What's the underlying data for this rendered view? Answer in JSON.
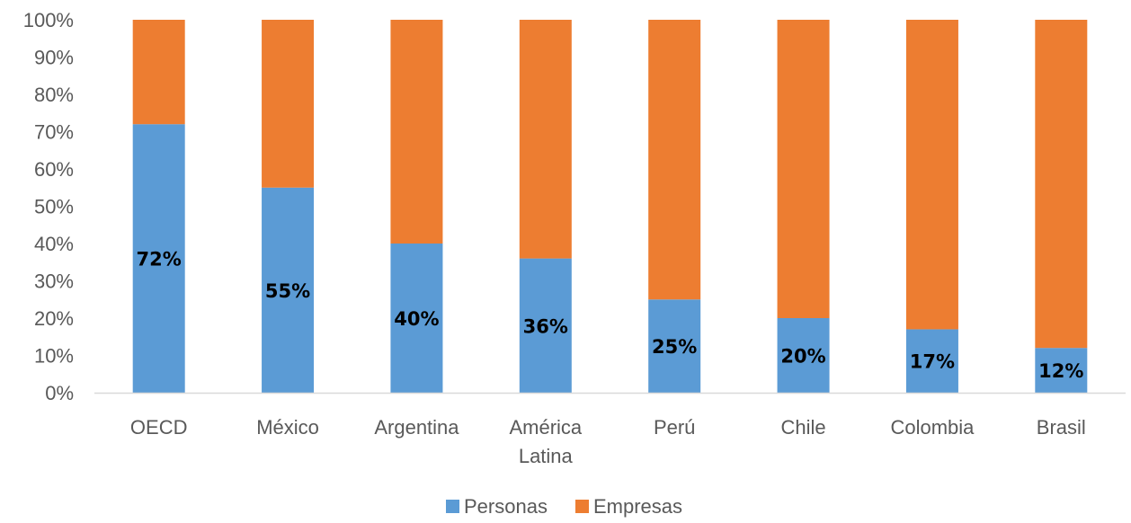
{
  "chart_data": {
    "type": "bar",
    "stacked": true,
    "categories": [
      [
        "OECD"
      ],
      [
        "México"
      ],
      [
        "Argentina"
      ],
      [
        "América",
        "Latina"
      ],
      [
        "Perú"
      ],
      [
        "Chile"
      ],
      [
        "Colombia"
      ],
      [
        "Brasil"
      ]
    ],
    "series": [
      {
        "name": "Personas",
        "color": "#5B9BD5",
        "values": [
          72,
          55,
          40,
          36,
          25,
          20,
          17,
          12
        ],
        "labels": [
          "72%",
          "55%",
          "40%",
          "36%",
          "25%",
          "20%",
          "17%",
          "12%"
        ]
      },
      {
        "name": "Empresas",
        "color": "#ED7D31",
        "values": [
          28,
          45,
          60,
          64,
          75,
          80,
          83,
          88
        ]
      }
    ],
    "ylim": [
      0,
      100
    ],
    "yticks": [
      "0%",
      "10%",
      "20%",
      "30%",
      "40%",
      "50%",
      "60%",
      "70%",
      "80%",
      "90%",
      "100%"
    ],
    "grid": false,
    "legend": "bottom-center"
  }
}
